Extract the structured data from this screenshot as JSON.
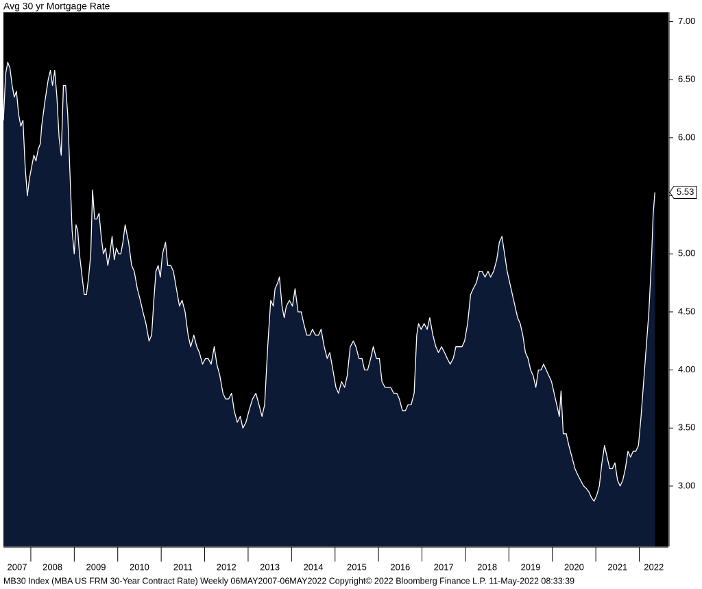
{
  "chart_data": {
    "type": "area",
    "title": "Avg 30 yr Mortgage Rate",
    "footer": "MB30 Index (MBA US FRM 30-Year Contract Rate)  Weekly 06MAY2007-06MAY2022    Copyright© 2022 Bloomberg Finance L.P.    11-May-2022 08:33:39",
    "xlim": [
      2007.37,
      2022.67
    ],
    "xticks": [
      2007,
      2008,
      2009,
      2010,
      2011,
      2012,
      2013,
      2014,
      2015,
      2016,
      2017,
      2018,
      2019,
      2020,
      2021,
      2022
    ],
    "ylim": [
      2.48,
      7.08
    ],
    "yticks": [
      {
        "value": 3.0,
        "label": "3.00"
      },
      {
        "value": 3.5,
        "label": "3.50"
      },
      {
        "value": 4.0,
        "label": "4.00"
      },
      {
        "value": 4.5,
        "label": "4.50"
      },
      {
        "value": 5.0,
        "label": "5.00"
      },
      {
        "value": 5.5,
        "label": "5.50"
      },
      {
        "value": 6.0,
        "label": "6.00"
      },
      {
        "value": 6.5,
        "label": "6.50"
      },
      {
        "value": 7.0,
        "label": "7.00"
      }
    ],
    "line_color": "#ffffff",
    "fill_color": "#0c1a36",
    "background": "#000000",
    "x": [
      2007.37,
      2007.42,
      2007.47,
      2007.52,
      2007.57,
      2007.62,
      2007.67,
      2007.72,
      2007.77,
      2007.82,
      2007.87,
      2007.92,
      2007.97,
      2008.02,
      2008.07,
      2008.12,
      2008.17,
      2008.22,
      2008.25,
      2008.32,
      2008.4,
      2008.45,
      2008.5,
      2008.55,
      2008.6,
      2008.65,
      2008.7,
      2008.75,
      2008.8,
      2008.85,
      2008.9,
      2008.95,
      2009.0,
      2009.04,
      2009.08,
      2009.12,
      2009.18,
      2009.23,
      2009.28,
      2009.33,
      2009.38,
      2009.42,
      2009.47,
      2009.52,
      2009.57,
      2009.62,
      2009.67,
      2009.72,
      2009.77,
      2009.82,
      2009.87,
      2009.92,
      2009.97,
      2010.02,
      2010.07,
      2010.12,
      2010.17,
      2010.25,
      2010.32,
      2010.38,
      2010.45,
      2010.52,
      2010.58,
      2010.65,
      2010.72,
      2010.78,
      2010.83,
      2010.88,
      2010.93,
      2010.98,
      2011.03,
      2011.1,
      2011.15,
      2011.22,
      2011.28,
      2011.35,
      2011.42,
      2011.48,
      2011.55,
      2011.62,
      2011.68,
      2011.75,
      2011.82,
      2011.88,
      2011.95,
      2012.02,
      2012.08,
      2012.15,
      2012.22,
      2012.28,
      2012.35,
      2012.42,
      2012.48,
      2012.55,
      2012.62,
      2012.68,
      2012.75,
      2012.82,
      2012.88,
      2012.95,
      2013.02,
      2013.1,
      2013.18,
      2013.25,
      2013.32,
      2013.38,
      2013.45,
      2013.52,
      2013.58,
      2013.62,
      2013.68,
      2013.72,
      2013.78,
      2013.83,
      2013.88,
      2013.95,
      2014.02,
      2014.08,
      2014.15,
      2014.22,
      2014.28,
      2014.35,
      2014.42,
      2014.48,
      2014.55,
      2014.62,
      2014.68,
      2014.75,
      2014.82,
      2014.88,
      2014.95,
      2015.02,
      2015.08,
      2015.15,
      2015.22,
      2015.28,
      2015.35,
      2015.42,
      2015.48,
      2015.55,
      2015.62,
      2015.68,
      2015.75,
      2015.82,
      2015.88,
      2015.95,
      2016.02,
      2016.08,
      2016.15,
      2016.22,
      2016.28,
      2016.35,
      2016.42,
      2016.48,
      2016.55,
      2016.62,
      2016.68,
      2016.75,
      2016.82,
      2016.88,
      2016.92,
      2016.98,
      2017.05,
      2017.12,
      2017.18,
      2017.25,
      2017.32,
      2017.38,
      2017.45,
      2017.52,
      2017.58,
      2017.65,
      2017.72,
      2017.78,
      2017.85,
      2017.92,
      2017.98,
      2018.05,
      2018.12,
      2018.18,
      2018.25,
      2018.32,
      2018.38,
      2018.45,
      2018.52,
      2018.58,
      2018.65,
      2018.72,
      2018.78,
      2018.84,
      2018.9,
      2018.96,
      2019.02,
      2019.08,
      2019.14,
      2019.2,
      2019.26,
      2019.32,
      2019.38,
      2019.44,
      2019.5,
      2019.56,
      2019.62,
      2019.68,
      2019.74,
      2019.8,
      2019.86,
      2019.92,
      2019.98,
      2020.04,
      2020.1,
      2020.16,
      2020.2,
      2020.25,
      2020.32,
      2020.38,
      2020.45,
      2020.52,
      2020.58,
      2020.65,
      2020.72,
      2020.78,
      2020.84,
      2020.9,
      2020.96,
      2021.02,
      2021.08,
      2021.14,
      2021.2,
      2021.26,
      2021.32,
      2021.38,
      2021.44,
      2021.5,
      2021.56,
      2021.62,
      2021.68,
      2021.74,
      2021.8,
      2021.86,
      2021.92,
      2021.98,
      2022.04,
      2022.1,
      2022.16,
      2022.22,
      2022.28,
      2022.32,
      2022.36
    ],
    "series": [
      {
        "name": "MB30 Index",
        "values": [
          6.15,
          6.55,
          6.65,
          6.6,
          6.45,
          6.35,
          6.4,
          6.2,
          6.1,
          6.15,
          5.75,
          5.5,
          5.65,
          5.75,
          5.85,
          5.8,
          5.9,
          5.95,
          6.1,
          6.3,
          6.5,
          6.58,
          6.45,
          6.58,
          6.35,
          6.0,
          5.85,
          6.45,
          6.45,
          6.2,
          5.7,
          5.2,
          5.0,
          5.25,
          5.2,
          5.0,
          4.8,
          4.65,
          4.65,
          4.8,
          5.0,
          5.55,
          5.3,
          5.3,
          5.35,
          5.15,
          5.0,
          5.05,
          4.9,
          5.0,
          5.15,
          4.95,
          5.05,
          5.0,
          5.0,
          5.1,
          5.25,
          5.1,
          4.9,
          4.85,
          4.7,
          4.6,
          4.5,
          4.4,
          4.25,
          4.3,
          4.6,
          4.85,
          4.9,
          4.8,
          5.0,
          5.1,
          4.9,
          4.9,
          4.85,
          4.7,
          4.55,
          4.6,
          4.5,
          4.3,
          4.2,
          4.3,
          4.2,
          4.15,
          4.05,
          4.1,
          4.1,
          4.05,
          4.2,
          4.05,
          3.95,
          3.8,
          3.75,
          3.75,
          3.8,
          3.65,
          3.55,
          3.6,
          3.5,
          3.55,
          3.65,
          3.75,
          3.8,
          3.7,
          3.6,
          3.7,
          4.2,
          4.6,
          4.55,
          4.7,
          4.75,
          4.8,
          4.55,
          4.45,
          4.55,
          4.6,
          4.55,
          4.7,
          4.5,
          4.5,
          4.4,
          4.3,
          4.3,
          4.35,
          4.3,
          4.3,
          4.35,
          4.2,
          4.1,
          4.15,
          4.0,
          3.85,
          3.8,
          3.9,
          3.85,
          3.95,
          4.2,
          4.25,
          4.2,
          4.1,
          4.1,
          4.0,
          4.0,
          4.1,
          4.2,
          4.1,
          4.1,
          3.9,
          3.85,
          3.85,
          3.85,
          3.8,
          3.8,
          3.75,
          3.65,
          3.65,
          3.7,
          3.7,
          3.8,
          4.3,
          4.4,
          4.35,
          4.4,
          4.35,
          4.45,
          4.3,
          4.2,
          4.15,
          4.2,
          4.15,
          4.1,
          4.05,
          4.1,
          4.2,
          4.2,
          4.2,
          4.25,
          4.4,
          4.65,
          4.7,
          4.75,
          4.85,
          4.85,
          4.8,
          4.85,
          4.8,
          4.85,
          4.95,
          5.1,
          5.15,
          5.0,
          4.85,
          4.75,
          4.65,
          4.55,
          4.45,
          4.4,
          4.3,
          4.15,
          4.1,
          4.0,
          3.95,
          3.85,
          4.0,
          4.0,
          4.05,
          4.0,
          3.95,
          3.9,
          3.8,
          3.7,
          3.6,
          3.82,
          3.45,
          3.45,
          3.35,
          3.25,
          3.15,
          3.1,
          3.05,
          3.0,
          2.98,
          2.95,
          2.9,
          2.87,
          2.92,
          3.0,
          3.2,
          3.35,
          3.25,
          3.15,
          3.15,
          3.2,
          3.05,
          3.0,
          3.05,
          3.15,
          3.3,
          3.25,
          3.3,
          3.3,
          3.35,
          3.6,
          3.9,
          4.2,
          4.5,
          4.95,
          5.35,
          5.53
        ]
      }
    ]
  }
}
